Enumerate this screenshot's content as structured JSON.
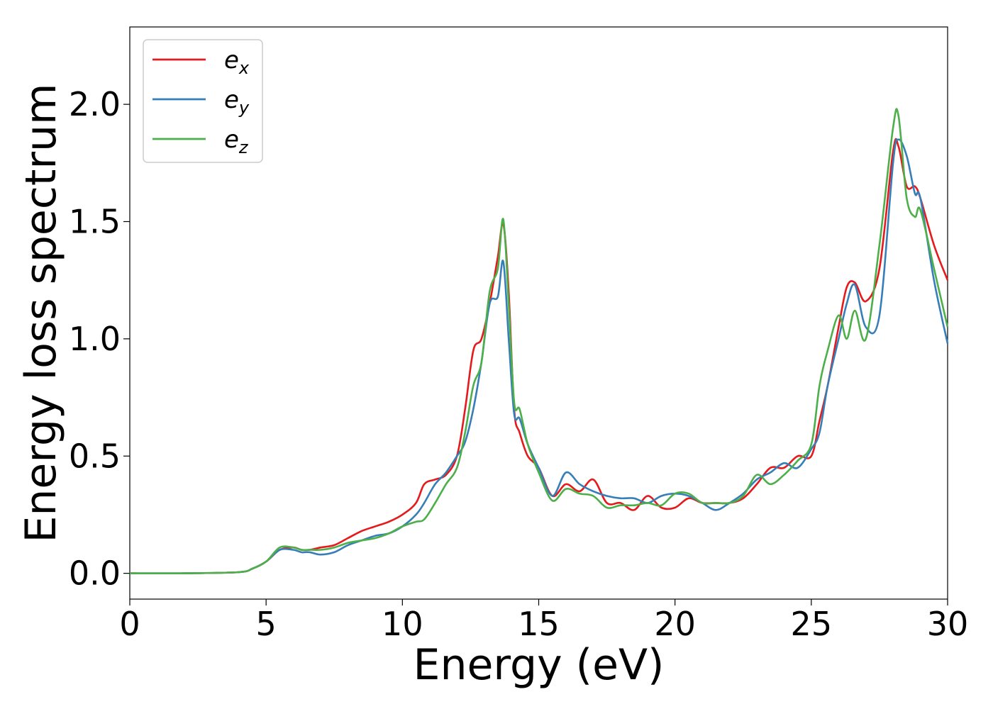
{
  "chart_data": {
    "type": "line",
    "title": "",
    "xlabel": "Energy (eV)",
    "ylabel": "Energy loss spectrum",
    "xlim": [
      0,
      30
    ],
    "ylim": [
      -0.11,
      2.33
    ],
    "xticks": [
      0,
      5,
      10,
      15,
      20,
      25,
      30
    ],
    "xtick_labels": [
      "0",
      "5",
      "10",
      "15",
      "20",
      "25",
      "30"
    ],
    "yticks": [
      0.0,
      0.5,
      1.0,
      1.5,
      2.0
    ],
    "ytick_labels": [
      "0.0",
      "0.5",
      "1.0",
      "1.5",
      "2.0"
    ],
    "grid": false,
    "legend_position": "top-left",
    "series": [
      {
        "name": "e",
        "subscript": "x",
        "color": "#e41a1c",
        "x": [
          0,
          2,
          4,
          4.5,
          5,
          5.5,
          6,
          6.3,
          6.6,
          7,
          7.5,
          8,
          8.5,
          9,
          9.5,
          10,
          10.5,
          10.8,
          11.2,
          11.6,
          12,
          12.3,
          12.6,
          12.9,
          13.2,
          13.5,
          13.7,
          13.9,
          14.1,
          14.3,
          14.6,
          15,
          15.5,
          16,
          16.5,
          17,
          17.5,
          18,
          18.5,
          19,
          19.5,
          20,
          20.5,
          21,
          21.5,
          22,
          22.5,
          23,
          23.5,
          24,
          24.5,
          25,
          25.3,
          25.6,
          26,
          26.3,
          26.6,
          27,
          27.5,
          28,
          28.2,
          28.5,
          28.8,
          29,
          29.5,
          30
        ],
        "y": [
          0,
          0,
          0.005,
          0.02,
          0.05,
          0.1,
          0.11,
          0.1,
          0.1,
          0.11,
          0.12,
          0.15,
          0.18,
          0.2,
          0.22,
          0.25,
          0.3,
          0.38,
          0.4,
          0.42,
          0.5,
          0.7,
          0.95,
          1.0,
          1.15,
          1.35,
          1.49,
          1.2,
          0.7,
          0.6,
          0.5,
          0.45,
          0.33,
          0.38,
          0.35,
          0.4,
          0.3,
          0.3,
          0.27,
          0.33,
          0.28,
          0.28,
          0.32,
          0.3,
          0.3,
          0.3,
          0.32,
          0.38,
          0.45,
          0.45,
          0.5,
          0.5,
          0.65,
          0.8,
          1.05,
          1.22,
          1.24,
          1.16,
          1.3,
          1.8,
          1.82,
          1.65,
          1.65,
          1.6,
          1.4,
          1.25
        ]
      },
      {
        "name": "e",
        "subscript": "y",
        "color": "#377eb8",
        "x": [
          0,
          2,
          4,
          4.5,
          5,
          5.5,
          6,
          6.3,
          6.6,
          7,
          7.5,
          8,
          8.5,
          9,
          9.5,
          10,
          10.5,
          10.8,
          11.2,
          11.6,
          12,
          12.3,
          12.6,
          12.9,
          13.2,
          13.5,
          13.7,
          13.9,
          14.1,
          14.3,
          14.6,
          15,
          15.5,
          16,
          16.5,
          17,
          17.5,
          18,
          18.5,
          19,
          19.5,
          20,
          20.5,
          21,
          21.5,
          22,
          22.5,
          23,
          23.5,
          24,
          24.5,
          25,
          25.3,
          25.6,
          26,
          26.3,
          26.6,
          27,
          27.5,
          28,
          28.2,
          28.5,
          28.8,
          29,
          29.5,
          30
        ],
        "y": [
          0,
          0,
          0.005,
          0.02,
          0.05,
          0.1,
          0.1,
          0.09,
          0.09,
          0.08,
          0.09,
          0.12,
          0.14,
          0.16,
          0.17,
          0.2,
          0.25,
          0.3,
          0.38,
          0.43,
          0.5,
          0.56,
          0.7,
          0.9,
          1.15,
          1.18,
          1.33,
          1.0,
          0.68,
          0.66,
          0.55,
          0.45,
          0.33,
          0.43,
          0.38,
          0.35,
          0.33,
          0.32,
          0.32,
          0.3,
          0.33,
          0.34,
          0.33,
          0.3,
          0.27,
          0.3,
          0.34,
          0.4,
          0.43,
          0.47,
          0.45,
          0.53,
          0.6,
          0.8,
          1.0,
          1.15,
          1.23,
          1.05,
          1.1,
          1.75,
          1.85,
          1.78,
          1.62,
          1.6,
          1.25,
          0.98
        ]
      },
      {
        "name": "e",
        "subscript": "z",
        "color": "#4daf4a",
        "x": [
          0,
          2,
          4,
          4.5,
          5,
          5.5,
          6,
          6.3,
          6.6,
          7,
          7.5,
          8,
          8.5,
          9,
          9.5,
          10,
          10.5,
          10.8,
          11.2,
          11.6,
          12,
          12.3,
          12.6,
          12.9,
          13.2,
          13.5,
          13.7,
          13.9,
          14.1,
          14.3,
          14.6,
          15,
          15.5,
          16,
          16.5,
          17,
          17.5,
          18,
          18.5,
          19,
          19.5,
          20,
          20.5,
          21,
          21.5,
          22,
          22.5,
          23,
          23.5,
          24,
          24.5,
          25,
          25.3,
          25.6,
          26,
          26.3,
          26.6,
          27,
          27.5,
          28,
          28.2,
          28.5,
          28.8,
          29,
          29.5,
          30
        ],
        "y": [
          0,
          0,
          0.005,
          0.02,
          0.05,
          0.11,
          0.11,
          0.1,
          0.1,
          0.1,
          0.11,
          0.13,
          0.14,
          0.15,
          0.17,
          0.2,
          0.22,
          0.23,
          0.3,
          0.38,
          0.45,
          0.6,
          0.8,
          0.9,
          1.2,
          1.3,
          1.51,
          1.15,
          0.73,
          0.7,
          0.55,
          0.43,
          0.31,
          0.36,
          0.34,
          0.33,
          0.28,
          0.29,
          0.29,
          0.3,
          0.29,
          0.34,
          0.34,
          0.3,
          0.3,
          0.3,
          0.33,
          0.42,
          0.38,
          0.42,
          0.48,
          0.55,
          0.8,
          0.95,
          1.1,
          1.0,
          1.12,
          1.0,
          1.4,
          1.9,
          1.95,
          1.6,
          1.52,
          1.55,
          1.3,
          1.05
        ]
      }
    ]
  }
}
